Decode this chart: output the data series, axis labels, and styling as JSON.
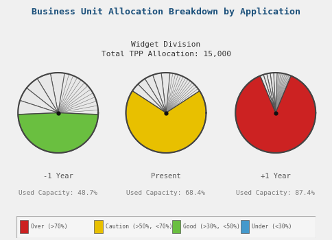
{
  "title": "Business Unit Allocation Breakdown by Application",
  "subtitle": "Widget Division\nTotal TPP Allocation: 15,000",
  "title_color": "#1a4f7a",
  "background_color": "#f0f0f0",
  "pies": [
    {
      "label": "-1 Year",
      "sublabel": "Used Capacity: 48.7%",
      "capacity": 0.487,
      "status_color": "#6abf40",
      "n_large_slices": 5,
      "n_fan_slices": 13
    },
    {
      "label": "Present",
      "sublabel": "Used Capacity: 68.4%",
      "capacity": 0.684,
      "status_color": "#e8c000",
      "n_large_slices": 5,
      "n_fan_slices": 13
    },
    {
      "label": "+1 Year",
      "sublabel": "Used Capacity: 87.4%",
      "capacity": 0.874,
      "status_color": "#cc2222",
      "n_large_slices": 5,
      "n_fan_slices": 13
    }
  ],
  "legend_items": [
    {
      "color": "#cc2222",
      "label": "Over (>70%)"
    },
    {
      "color": "#e8c000",
      "label": "Caution (>50%, <70%)"
    },
    {
      "color": "#6abf40",
      "label": "Good (>30%, <50%)"
    },
    {
      "color": "#4499cc",
      "label": "Under (<30%)"
    }
  ],
  "small_slice_color": "#e8e8e8",
  "slice_edge_color": "#555555",
  "circle_edge_color": "#444444"
}
